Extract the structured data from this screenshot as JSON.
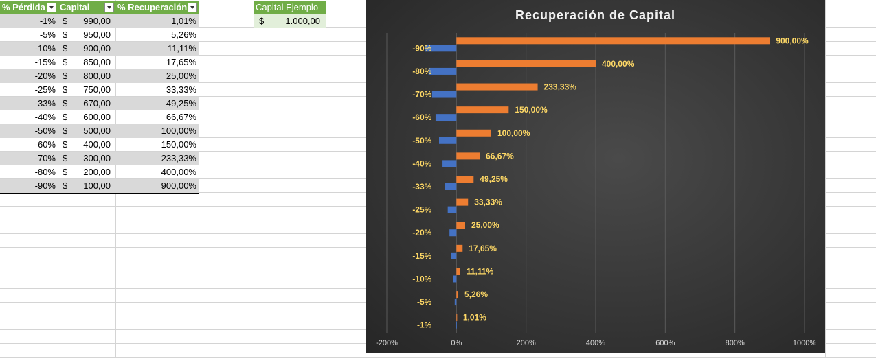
{
  "table": {
    "headers": {
      "loss": "% Pérdida",
      "capital": "Capital",
      "recovery": "% Recuperación"
    },
    "rows": [
      {
        "loss": "-1%",
        "currency": "$",
        "capital": "990,00",
        "recovery": "1,01%"
      },
      {
        "loss": "-5%",
        "currency": "$",
        "capital": "950,00",
        "recovery": "5,26%"
      },
      {
        "loss": "-10%",
        "currency": "$",
        "capital": "900,00",
        "recovery": "11,11%"
      },
      {
        "loss": "-15%",
        "currency": "$",
        "capital": "850,00",
        "recovery": "17,65%"
      },
      {
        "loss": "-20%",
        "currency": "$",
        "capital": "800,00",
        "recovery": "25,00%"
      },
      {
        "loss": "-25%",
        "currency": "$",
        "capital": "750,00",
        "recovery": "33,33%"
      },
      {
        "loss": "-33%",
        "currency": "$",
        "capital": "670,00",
        "recovery": "49,25%"
      },
      {
        "loss": "-40%",
        "currency": "$",
        "capital": "600,00",
        "recovery": "66,67%"
      },
      {
        "loss": "-50%",
        "currency": "$",
        "capital": "500,00",
        "recovery": "100,00%"
      },
      {
        "loss": "-60%",
        "currency": "$",
        "capital": "400,00",
        "recovery": "150,00%"
      },
      {
        "loss": "-70%",
        "currency": "$",
        "capital": "300,00",
        "recovery": "233,33%"
      },
      {
        "loss": "-80%",
        "currency": "$",
        "capital": "200,00",
        "recovery": "400,00%"
      },
      {
        "loss": "-90%",
        "currency": "$",
        "capital": "100,00",
        "recovery": "900,00%"
      }
    ]
  },
  "capital_example": {
    "header": "Capital Ejemplo",
    "currency": "$",
    "value": "1.000,00"
  },
  "colors": {
    "header_green": "#70ad47",
    "loss_bar": "#4472c4",
    "recovery_bar": "#ed7d31",
    "data_label": "#ffd966"
  },
  "chart_data": {
    "type": "bar",
    "orientation": "horizontal",
    "title": "Recuperación de Capital",
    "categories": [
      "-1%",
      "-5%",
      "-10%",
      "-15%",
      "-20%",
      "-25%",
      "-33%",
      "-40%",
      "-50%",
      "-60%",
      "-70%",
      "-80%",
      "-90%"
    ],
    "series": [
      {
        "values": [
          -1,
          -5,
          -10,
          -15,
          -20,
          -25,
          -33,
          -40,
          -50,
          -60,
          -70,
          -80,
          -90
        ]
      },
      {
        "values": [
          1.01,
          5.26,
          11.11,
          17.65,
          25.0,
          33.33,
          49.25,
          66.67,
          100.0,
          150.0,
          233.33,
          400.0,
          900.0
        ],
        "data_labels": [
          "1,01%",
          "5,26%",
          "11,11%",
          "17,65%",
          "25,00%",
          "33,33%",
          "49,25%",
          "66,67%",
          "100,00%",
          "150,00%",
          "233,33%",
          "400,00%",
          "900,00%"
        ]
      }
    ],
    "xlim": [
      -200,
      1000
    ],
    "xticks": [
      -200,
      0,
      200,
      400,
      600,
      800,
      1000
    ],
    "xtick_labels": [
      "-200%",
      "0%",
      "200%",
      "400%",
      "600%",
      "800%",
      "1000%"
    ],
    "grid": true,
    "legend": "none"
  }
}
